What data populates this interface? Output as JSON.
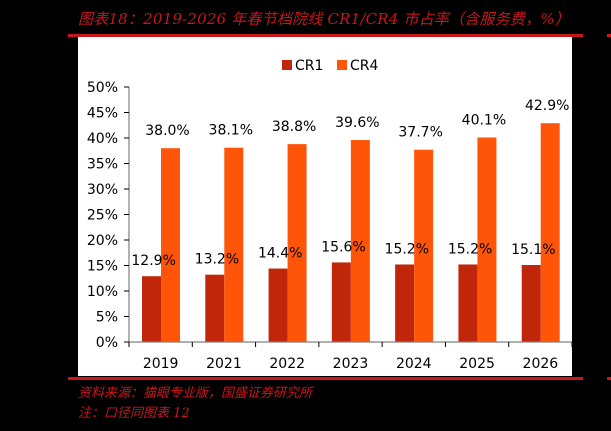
{
  "header": {
    "title": "图表18：2019-2026 年春节档院线 CR1/CR4 市占率（含服务费，%）"
  },
  "footer": {
    "source": "资料来源：猫眼专业版，国盛证券研究所",
    "note": "注：口径同图表 12"
  },
  "colors": {
    "accent_red": "#C8161D",
    "cr1": "#C0260A",
    "cr4": "#FF5508"
  },
  "chart_data": {
    "type": "bar",
    "title": "2019-2026 年春节档院线 CR1/CR4 市占率（含服务费，%）",
    "xlabel": "",
    "ylabel": "",
    "categories": [
      "2019",
      "2021",
      "2022",
      "2023",
      "2024",
      "2025",
      "2026"
    ],
    "series": [
      {
        "name": "CR1",
        "color": "#C0260A",
        "values": [
          12.9,
          13.2,
          14.4,
          15.6,
          15.2,
          15.2,
          15.1
        ],
        "labels": [
          "12.9%",
          "13.2%",
          "14.4%",
          "15.6%",
          "15.2%",
          "15.2%",
          "15.1%"
        ]
      },
      {
        "name": "CR4",
        "color": "#FF5508",
        "values": [
          38.0,
          38.1,
          38.8,
          39.6,
          37.7,
          40.1,
          42.9
        ],
        "labels": [
          "38.0%",
          "38.1%",
          "38.8%",
          "39.6%",
          "37.7%",
          "40.1%",
          "42.9%"
        ]
      }
    ],
    "ylim": [
      0,
      50
    ],
    "yticks": [
      "0%",
      "5%",
      "10%",
      "15%",
      "20%",
      "25%",
      "30%",
      "35%",
      "40%",
      "45%",
      "50%"
    ],
    "grid": false,
    "legend_position": "top"
  }
}
